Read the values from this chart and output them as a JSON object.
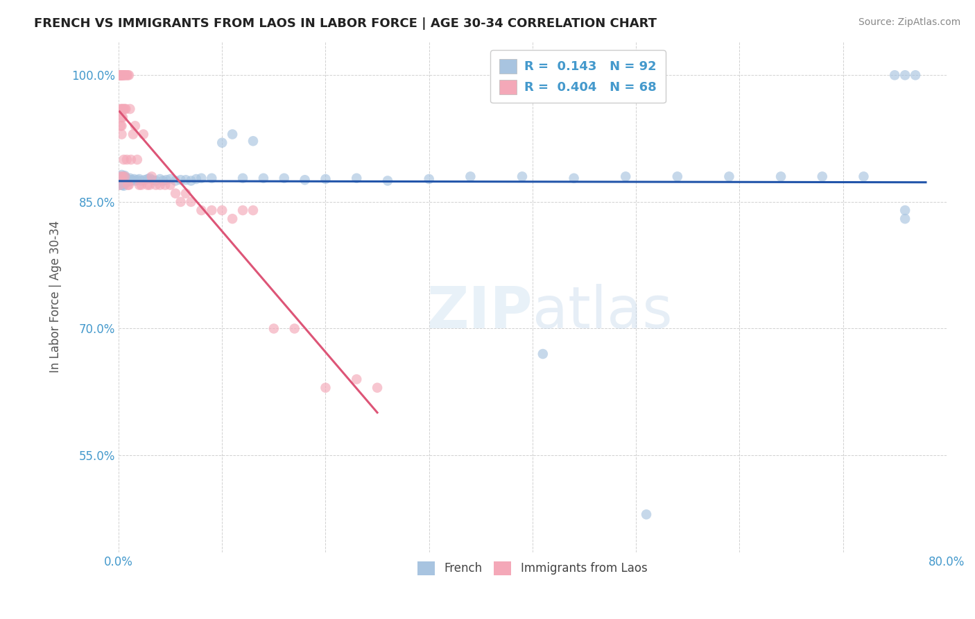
{
  "title": "FRENCH VS IMMIGRANTS FROM LAOS IN LABOR FORCE | AGE 30-34 CORRELATION CHART",
  "source": "Source: ZipAtlas.com",
  "ylabel": "In Labor Force | Age 30-34",
  "xlim": [
    0.0,
    0.8
  ],
  "ylim": [
    0.435,
    1.04
  ],
  "french_color": "#a8c4e0",
  "laos_color": "#f4a8b8",
  "french_line_color": "#2255aa",
  "laos_line_color": "#dd5577",
  "axis_color": "#4499cc",
  "title_color": "#333333",
  "french_x": [
    0.001,
    0.001,
    0.002,
    0.002,
    0.002,
    0.002,
    0.003,
    0.003,
    0.003,
    0.003,
    0.003,
    0.003,
    0.004,
    0.004,
    0.004,
    0.004,
    0.004,
    0.004,
    0.004,
    0.005,
    0.005,
    0.005,
    0.005,
    0.005,
    0.005,
    0.005,
    0.005,
    0.005,
    0.006,
    0.006,
    0.006,
    0.006,
    0.006,
    0.007,
    0.007,
    0.007,
    0.008,
    0.008,
    0.009,
    0.01,
    0.01,
    0.011,
    0.012,
    0.013,
    0.015,
    0.016,
    0.018,
    0.02,
    0.022,
    0.025,
    0.028,
    0.03,
    0.033,
    0.036,
    0.04,
    0.043,
    0.046,
    0.05,
    0.055,
    0.06,
    0.065,
    0.07,
    0.075,
    0.08,
    0.09,
    0.1,
    0.11,
    0.12,
    0.13,
    0.14,
    0.16,
    0.18,
    0.2,
    0.23,
    0.26,
    0.3,
    0.34,
    0.39,
    0.44,
    0.49,
    0.54,
    0.59,
    0.64,
    0.68,
    0.72,
    0.75,
    0.76,
    0.77,
    0.76,
    0.76,
    0.41,
    0.51
  ],
  "french_y": [
    0.87,
    0.875,
    0.872,
    0.876,
    0.88,
    0.874,
    0.87,
    0.875,
    0.878,
    0.882,
    0.873,
    0.877,
    0.87,
    0.874,
    0.876,
    0.879,
    0.872,
    0.875,
    0.88,
    0.871,
    0.874,
    0.876,
    0.878,
    0.88,
    0.873,
    0.875,
    0.877,
    0.869,
    0.872,
    0.874,
    0.876,
    0.879,
    0.881,
    0.873,
    0.876,
    0.878,
    0.874,
    0.877,
    0.875,
    0.874,
    0.876,
    0.878,
    0.875,
    0.876,
    0.877,
    0.875,
    0.876,
    0.877,
    0.875,
    0.876,
    0.877,
    0.878,
    0.876,
    0.875,
    0.877,
    0.875,
    0.876,
    0.877,
    0.875,
    0.876,
    0.876,
    0.875,
    0.877,
    0.878,
    0.878,
    0.92,
    0.93,
    0.878,
    0.922,
    0.878,
    0.878,
    0.876,
    0.877,
    0.878,
    0.875,
    0.877,
    0.88,
    0.88,
    0.878,
    0.88,
    0.88,
    0.88,
    0.88,
    0.88,
    0.88,
    1.0,
    1.0,
    1.0,
    0.83,
    0.84,
    0.67,
    0.48
  ],
  "laos_x": [
    0.001,
    0.001,
    0.001,
    0.001,
    0.002,
    0.002,
    0.002,
    0.002,
    0.002,
    0.002,
    0.002,
    0.003,
    0.003,
    0.003,
    0.003,
    0.003,
    0.003,
    0.003,
    0.004,
    0.004,
    0.004,
    0.004,
    0.004,
    0.005,
    0.005,
    0.005,
    0.005,
    0.006,
    0.006,
    0.006,
    0.007,
    0.007,
    0.008,
    0.008,
    0.009,
    0.009,
    0.01,
    0.01,
    0.011,
    0.012,
    0.014,
    0.016,
    0.018,
    0.02,
    0.022,
    0.024,
    0.028,
    0.03,
    0.032,
    0.036,
    0.04,
    0.045,
    0.05,
    0.055,
    0.06,
    0.065,
    0.07,
    0.08,
    0.09,
    0.1,
    0.11,
    0.12,
    0.13,
    0.15,
    0.17,
    0.2,
    0.23,
    0.25
  ],
  "laos_y": [
    1.0,
    1.0,
    1.0,
    0.87,
    1.0,
    1.0,
    1.0,
    1.0,
    0.96,
    0.94,
    0.88,
    1.0,
    1.0,
    1.0,
    0.96,
    0.95,
    0.94,
    0.93,
    1.0,
    1.0,
    0.96,
    0.95,
    0.88,
    1.0,
    1.0,
    0.96,
    0.9,
    1.0,
    0.96,
    0.88,
    1.0,
    0.96,
    1.0,
    0.9,
    1.0,
    0.87,
    1.0,
    0.87,
    0.96,
    0.9,
    0.93,
    0.94,
    0.9,
    0.87,
    0.87,
    0.93,
    0.87,
    0.87,
    0.88,
    0.87,
    0.87,
    0.87,
    0.87,
    0.86,
    0.85,
    0.86,
    0.85,
    0.84,
    0.84,
    0.84,
    0.83,
    0.84,
    0.84,
    0.7,
    0.7,
    0.63,
    0.64,
    0.63
  ]
}
